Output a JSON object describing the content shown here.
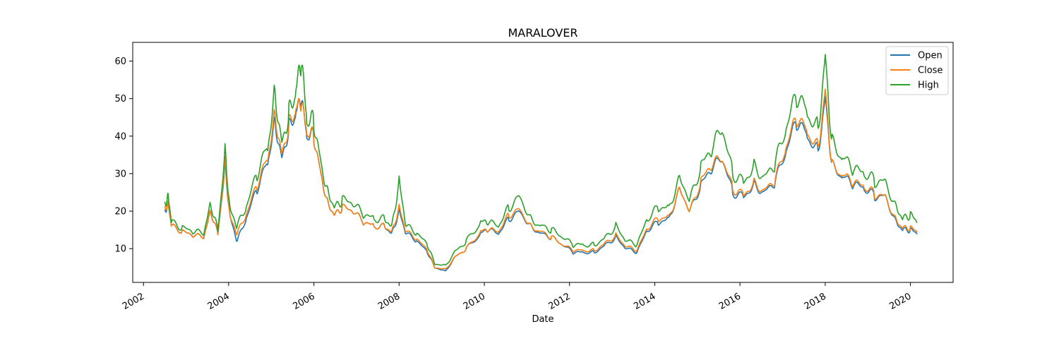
{
  "chart_data": {
    "type": "line",
    "title": "MARALOVER",
    "xlabel": "Date",
    "ylabel": "",
    "x_ticks": [
      "2002",
      "2004",
      "2006",
      "2008",
      "2010",
      "2012",
      "2014",
      "2016",
      "2018",
      "2020"
    ],
    "y_ticks": [
      10,
      20,
      30,
      40,
      50,
      60
    ],
    "xlim": [
      "2001-10-01",
      "2021-01-01"
    ],
    "ylim": [
      1,
      65
    ],
    "grid": false,
    "legend_position": "top-right",
    "dates": [
      "2002-07-01",
      "2002-08-01",
      "2002-09-01",
      "2002-12-01",
      "2003-03-01",
      "2003-06-01",
      "2003-08-01",
      "2003-10-01",
      "2003-12-01",
      "2004-01-15",
      "2004-03-15",
      "2004-06-01",
      "2004-09-01",
      "2004-12-01",
      "2005-02-01",
      "2005-04-01",
      "2005-06-01",
      "2005-08-01",
      "2005-09-15",
      "2005-11-01",
      "2006-01-01",
      "2006-03-01",
      "2006-05-01",
      "2006-07-01",
      "2006-09-01",
      "2006-12-01",
      "2007-03-01",
      "2007-06-01",
      "2007-09-01",
      "2007-11-01",
      "2008-01-01",
      "2008-03-01",
      "2008-06-01",
      "2008-09-01",
      "2008-11-01",
      "2009-02-01",
      "2009-05-01",
      "2009-08-01",
      "2009-12-01",
      "2010-02-01",
      "2010-05-01",
      "2010-08-01",
      "2010-11-01",
      "2011-02-01",
      "2011-05-01",
      "2011-08-01",
      "2011-11-01",
      "2012-02-01",
      "2012-05-01",
      "2012-08-01",
      "2012-11-01",
      "2013-02-01",
      "2013-05-01",
      "2013-08-01",
      "2013-11-01",
      "2014-02-01",
      "2014-05-01",
      "2014-08-01",
      "2014-11-01",
      "2015-02-01",
      "2015-05-01",
      "2015-08-01",
      "2015-11-01",
      "2016-02-01",
      "2016-05-01",
      "2016-08-01",
      "2016-11-01",
      "2017-02-01",
      "2017-05-01",
      "2017-08-01",
      "2017-11-01",
      "2018-01-01",
      "2018-03-01",
      "2018-06-01",
      "2018-09-01",
      "2018-12-01",
      "2019-03-01",
      "2019-06-01",
      "2019-09-01",
      "2019-11-01",
      "2020-01-01",
      "2020-03-01"
    ],
    "series": [
      {
        "name": "Open",
        "color": "#1f77b4",
        "values": [
          20,
          22,
          16,
          14.5,
          13.5,
          13,
          20,
          14,
          32,
          18,
          12,
          18,
          26,
          33,
          44,
          34,
          42,
          46,
          50,
          40,
          40,
          30,
          22,
          19,
          21,
          20,
          17,
          16,
          16,
          14,
          20,
          14,
          12,
          9,
          5,
          4,
          8,
          10,
          14,
          15,
          14,
          18,
          20,
          16,
          14,
          13,
          11,
          9,
          9,
          9,
          11,
          13,
          10,
          9,
          15,
          17,
          18,
          26,
          20,
          27,
          31,
          34,
          25,
          24,
          27,
          25,
          28,
          36,
          44,
          40,
          36,
          50,
          32,
          29,
          27,
          26,
          24,
          24,
          17,
          15,
          15,
          14
        ]
      },
      {
        "name": "Close",
        "color": "#ff7f0e",
        "values": [
          21,
          22,
          16,
          14.5,
          13.5,
          13,
          20,
          14,
          33,
          18,
          14,
          19,
          27,
          34,
          46,
          35,
          43,
          47,
          49,
          41,
          40,
          30,
          22,
          19,
          21,
          20,
          17,
          16,
          16,
          14.5,
          21,
          14.5,
          12.5,
          9.5,
          5,
          4.5,
          8,
          10,
          14.5,
          15,
          14.5,
          19,
          20.5,
          16,
          14.5,
          13,
          11,
          9.5,
          9.5,
          9.5,
          11.5,
          13.5,
          10.5,
          9.5,
          15.5,
          18,
          18.5,
          26,
          20,
          28,
          32,
          34,
          26,
          24.5,
          27.5,
          25.5,
          28.5,
          37,
          45,
          41,
          37,
          52,
          32,
          29.5,
          27.5,
          26.5,
          24.5,
          24,
          17.5,
          15.5,
          15.5,
          14.5
        ]
      },
      {
        "name": "High",
        "color": "#2ca02c",
        "values": [
          22,
          24,
          17,
          15.5,
          14.5,
          14,
          22,
          15,
          36,
          20,
          16,
          21,
          30,
          37,
          52,
          38,
          46,
          52,
          60,
          44,
          44,
          33,
          25,
          21,
          23,
          22,
          19,
          18,
          18,
          16,
          28,
          16,
          14,
          11,
          6,
          5.5,
          9.5,
          12,
          17,
          17,
          16,
          21,
          24,
          18,
          16,
          15,
          13,
          11,
          11,
          11,
          13,
          16,
          12,
          11,
          18,
          21,
          21,
          29,
          23,
          32,
          36,
          42,
          30,
          28,
          32,
          29,
          33,
          42,
          51,
          46,
          42,
          61,
          38,
          34,
          31,
          30,
          28,
          28,
          21,
          18,
          19,
          17
        ]
      }
    ]
  }
}
